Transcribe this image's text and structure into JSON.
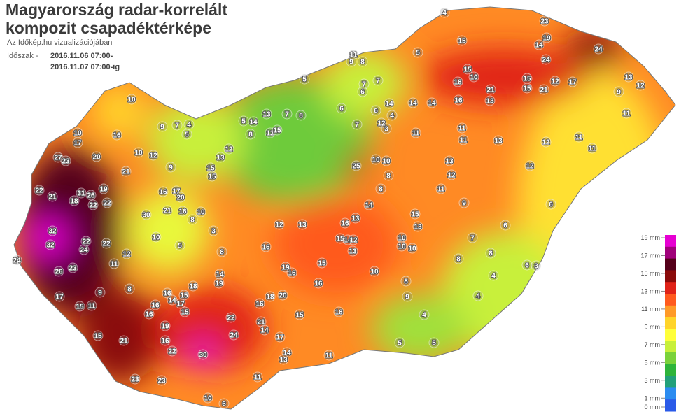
{
  "header": {
    "title_line1": "Magyarország radar-korrelált",
    "title_line2": "kompozit csapadéktérképe",
    "subtitle": "Az Időkép.hu vizualizációjában",
    "period_label": "Időszak -",
    "period_start": "2016.11.06 07:00-",
    "period_end": "2016.11.07 07:00-ig"
  },
  "legend": {
    "ticks": [
      {
        "value": 19,
        "label": "19 mm"
      },
      {
        "value": 17,
        "label": "17 mm"
      },
      {
        "value": 15,
        "label": "15 mm"
      },
      {
        "value": 13,
        "label": "13 mm"
      },
      {
        "value": 11,
        "label": "11 mm"
      },
      {
        "value": 9,
        "label": "9 mm"
      },
      {
        "value": 7,
        "label": "7 mm"
      },
      {
        "value": 5,
        "label": "5 mm"
      },
      {
        "value": 3,
        "label": "3 mm"
      },
      {
        "value": 1,
        "label": "1 mm"
      },
      {
        "value": 0,
        "label": "0 mm"
      }
    ],
    "colors": [
      "#e600d2",
      "#a0007a",
      "#55001a",
      "#8a0a0a",
      "#e02218",
      "#ff5a1e",
      "#ff9a28",
      "#ffd42a",
      "#ffff3a",
      "#c8f03a",
      "#7ad23a",
      "#2eb43a",
      "#22a07a",
      "#2c8cf0",
      "#2a5ae8"
    ]
  },
  "stations": [
    4,
    23,
    19,
    14,
    24,
    24,
    11,
    9,
    8,
    5,
    15,
    5,
    15,
    10,
    18,
    21,
    15,
    15,
    21,
    12,
    17,
    13,
    12,
    9,
    11,
    13,
    16,
    14,
    14,
    14,
    7,
    7,
    6,
    6,
    7,
    6,
    4,
    12,
    3,
    11,
    11,
    11,
    12,
    11,
    11,
    12,
    13,
    13,
    12,
    11,
    9,
    6,
    6,
    7,
    8,
    8,
    6,
    3,
    4,
    4,
    4,
    5,
    5,
    25,
    10,
    10,
    8,
    8,
    14,
    10,
    10,
    17,
    16,
    9,
    7,
    4,
    5,
    10,
    12,
    20,
    27,
    23,
    9,
    21,
    15,
    15,
    12,
    13,
    8,
    5,
    14,
    13,
    12,
    15,
    7,
    8,
    22,
    21,
    31,
    26,
    19,
    18,
    22,
    22,
    32,
    32,
    22,
    24,
    22,
    30,
    21,
    16,
    17,
    20,
    10,
    16,
    8,
    10,
    12,
    5,
    3,
    8,
    16,
    12,
    13,
    16,
    13,
    15,
    14,
    12,
    13,
    10,
    10,
    10,
    10,
    13,
    15,
    15,
    19,
    16,
    14,
    19,
    18,
    26,
    23,
    24,
    11,
    9,
    8,
    15,
    11,
    16,
    14,
    15,
    17,
    16,
    15,
    16,
    17,
    15,
    21,
    19,
    16,
    22,
    30,
    22,
    21,
    14,
    24,
    16,
    18,
    20,
    15,
    16,
    18,
    9,
    8,
    11,
    14,
    13,
    17,
    11,
    23,
    23,
    10,
    6
  ]
}
